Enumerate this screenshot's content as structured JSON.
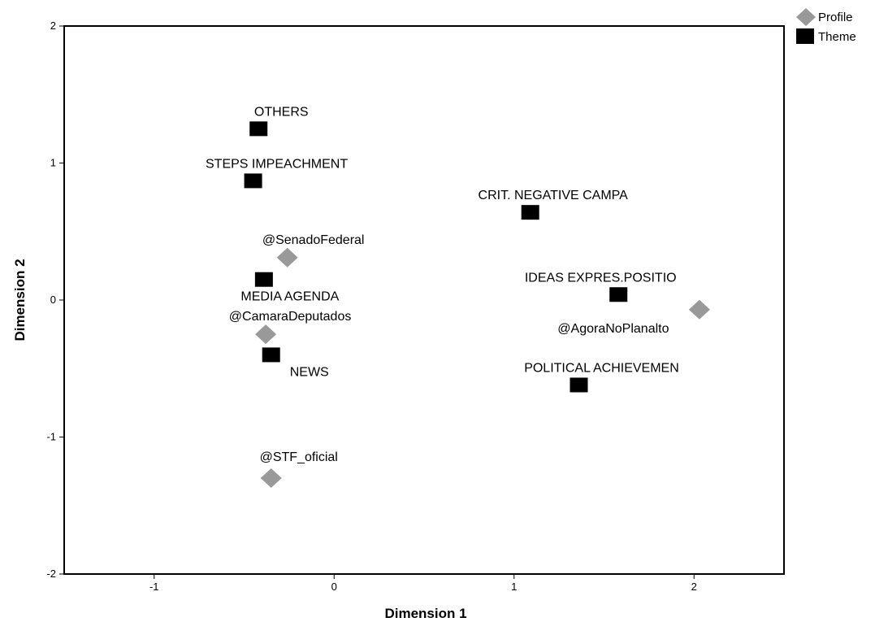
{
  "chart_data": {
    "type": "scatter",
    "xlabel": "Dimension 1",
    "ylabel": "Dimension 2",
    "xlim": [
      -1.5,
      2.5
    ],
    "ylim": [
      -2,
      2
    ],
    "x_ticks": [
      -1,
      0,
      1,
      2
    ],
    "y_ticks": [
      -2,
      -1,
      0,
      1,
      2
    ],
    "grid": false,
    "legend_position": "top-right",
    "series": [
      {
        "name": "Profile",
        "marker": "diamond",
        "color": "#999999",
        "points": [
          {
            "label": "@SenadoFederal",
            "x": -0.26,
            "y": 0.31
          },
          {
            "label": "@CamaraDeputados",
            "x": -0.38,
            "y": -0.25
          },
          {
            "label": "@STF_oficial",
            "x": -0.35,
            "y": -1.3
          },
          {
            "label": "@AgoraNoPlanalto",
            "x": 2.03,
            "y": -0.07
          }
        ]
      },
      {
        "name": "Theme",
        "marker": "square",
        "color": "#000000",
        "points": [
          {
            "label": "OTHERS",
            "x": -0.42,
            "y": 1.25
          },
          {
            "label": "STEPS IMPEACHMENT",
            "x": -0.45,
            "y": 0.87
          },
          {
            "label": "MEDIA AGENDA",
            "x": -0.39,
            "y": 0.15
          },
          {
            "label": "NEWS",
            "x": -0.35,
            "y": -0.4
          },
          {
            "label": "CRIT. NEGATIVE CAMPA",
            "x": 1.09,
            "y": 0.64
          },
          {
            "label": "IDEAS EXPRES.POSITIO",
            "x": 1.58,
            "y": 0.04
          },
          {
            "label": "POLITICAL ACHIEVEMEN",
            "x": 1.36,
            "y": -0.62
          }
        ]
      }
    ]
  }
}
